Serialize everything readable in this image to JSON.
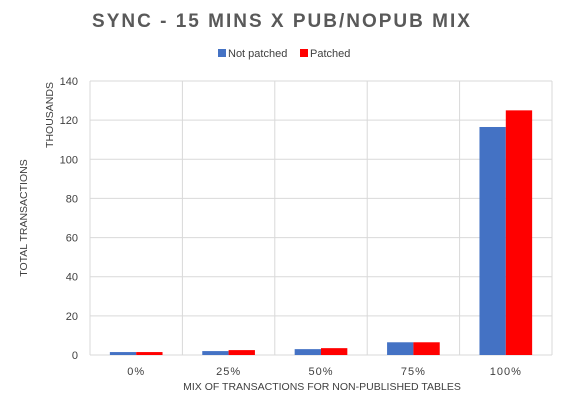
{
  "chart_data": {
    "type": "bar",
    "title": "SYNC - 15 MINS X PUB/NOPUB MIX",
    "xlabel": "MIX OF TRANSACTIONS FOR NON-PUBLISHED TABLES",
    "ylabel": "TOTAL TRANSACTIONS",
    "y_unit_label": "THOUSANDS",
    "categories": [
      "0%",
      "25%",
      "50%",
      "75%",
      "100%"
    ],
    "ylim": [
      0,
      140
    ],
    "yticks": [
      "0",
      "20",
      "40",
      "60",
      "80",
      "100",
      "120",
      "140"
    ],
    "grid": true,
    "legend_position": "top",
    "series": [
      {
        "name": "Not patched",
        "color": "#4472c4",
        "values": [
          1.5,
          2.0,
          3.0,
          6.5,
          116.5
        ]
      },
      {
        "name": "Patched",
        "color": "#ff0000",
        "values": [
          1.5,
          2.5,
          3.5,
          6.5,
          125.0
        ]
      }
    ]
  }
}
